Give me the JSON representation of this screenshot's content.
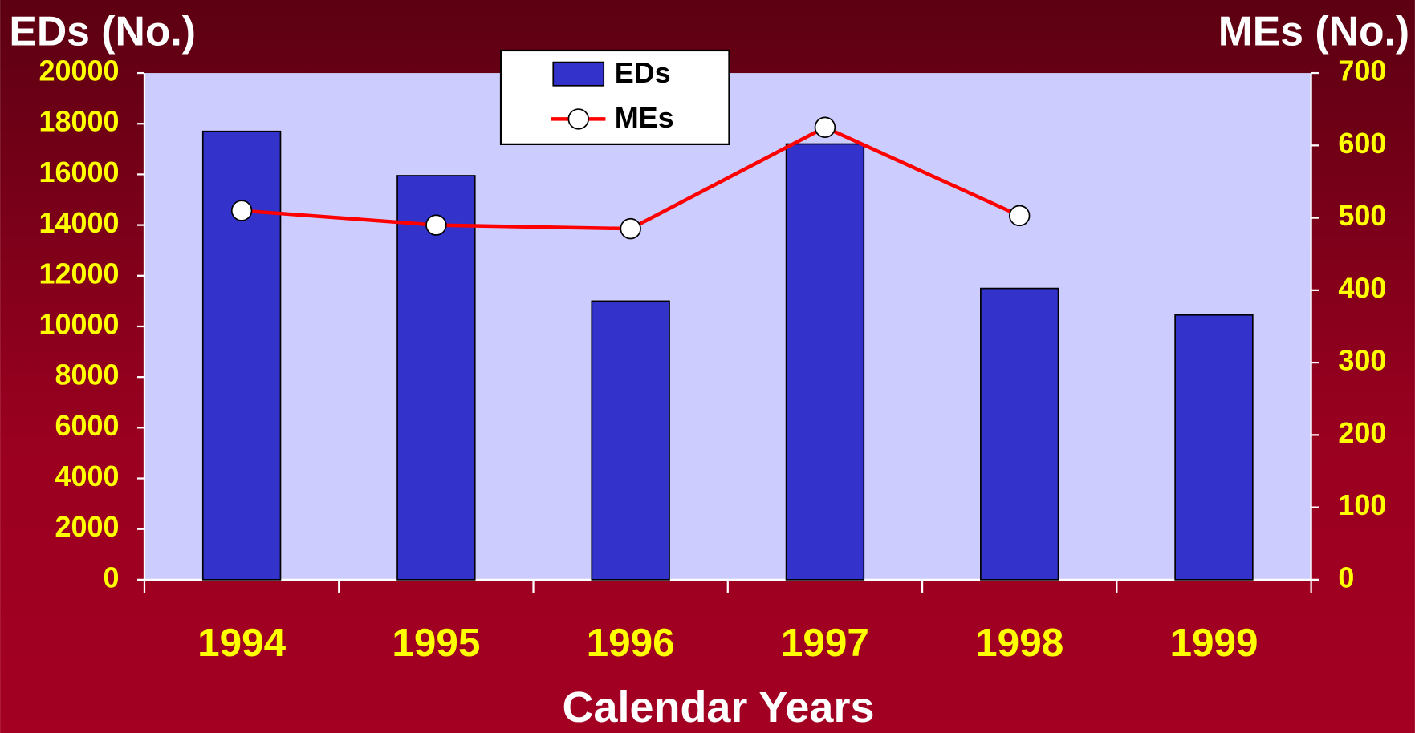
{
  "chart_data": {
    "type": "bar_line",
    "xlabel": "Calendar Years",
    "ylabel": "EDs (No.)",
    "y2label": "MEs (No.)",
    "categories": [
      "1994",
      "1995",
      "1996",
      "1997",
      "1998",
      "1999"
    ],
    "series": [
      {
        "name": "EDs",
        "type": "bar",
        "color": "#3333cc",
        "values": [
          17700,
          15950,
          11000,
          17200,
          11500,
          10450
        ]
      },
      {
        "name": "MEs",
        "type": "line",
        "axis": "y2",
        "color": "#ff0000",
        "values": [
          510,
          490,
          485,
          625,
          503,
          null
        ]
      }
    ],
    "ylim": [
      0,
      20000
    ],
    "yticks": [
      0,
      2000,
      4000,
      6000,
      8000,
      10000,
      12000,
      14000,
      16000,
      18000,
      20000
    ],
    "y2lim": [
      0,
      700
    ],
    "y2ticks": [
      0,
      100,
      200,
      300,
      400,
      500,
      600,
      700
    ],
    "legend": "top-center"
  }
}
